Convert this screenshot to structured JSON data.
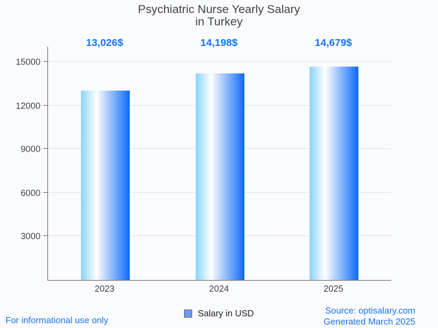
{
  "title": {
    "line1": "Psychiatric Nurse Yearly Salary",
    "line2": "in Turkey"
  },
  "chart_data": {
    "type": "bar",
    "title": "Psychiatric Nurse Yearly Salary in Turkey",
    "categories": [
      "2023",
      "2024",
      "2025"
    ],
    "series": [
      {
        "name": "Salary in USD",
        "values": [
          13026,
          14198,
          14679
        ]
      }
    ],
    "value_labels": [
      "13,026$",
      "14,198$",
      "14,679$"
    ],
    "xlabel": "",
    "ylabel": "",
    "ylim": [
      0,
      15000
    ],
    "yticks": [
      3000,
      6000,
      9000,
      12000,
      15000
    ],
    "grid": true,
    "legend_position": "bottom"
  },
  "legend": {
    "label": "Salary in USD"
  },
  "footer": {
    "left": "For informational use only",
    "source": "Source: optisalary.com",
    "generated": "Generated March 2025"
  },
  "colors": {
    "accent": "#1a73e8",
    "title_text": "#424242",
    "axis_text": "#424242",
    "grid_line": "#e6e6e6",
    "axis_line": "#757575",
    "background": "#fafbfe",
    "bar_gradient_left": "#8ad4fa",
    "bar_gradient_mid": "#ffffff",
    "bar_gradient_right": "#0d6afb",
    "legend_fill": "#6b9cf1",
    "legend_border": "#757575"
  }
}
